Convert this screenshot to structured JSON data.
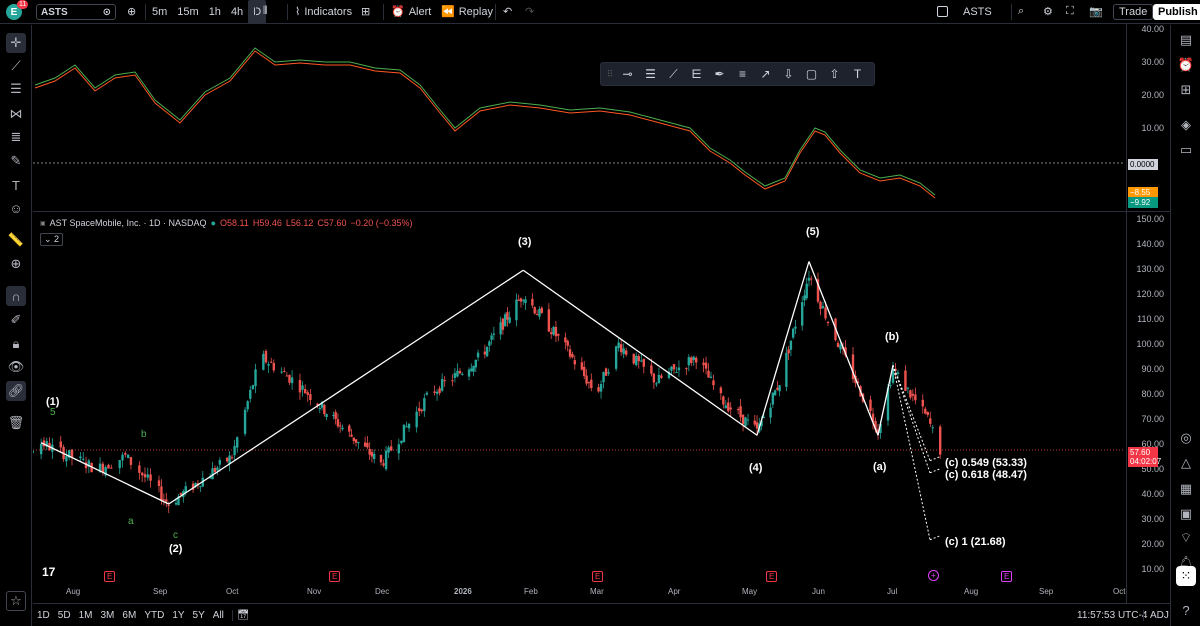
{
  "topbar": {
    "avatar_letter": "E",
    "avatar_badge": "11",
    "symbol": "ASTS",
    "timeframes": [
      "5m",
      "15m",
      "1h",
      "4h",
      "D"
    ],
    "indicators_label": "Indicators",
    "alert_label": "Alert",
    "replay_label": "Replay",
    "right_symbol": "ASTS",
    "trade_label": "Trade",
    "publish_label": "Publish"
  },
  "legend": {
    "title": "AST SpaceMobile, Inc. · 1D · NASDAQ",
    "o": "O58.11",
    "h": "H59.46",
    "l": "L56.12",
    "c": "C57.60",
    "chg": "−0.20 (−0.35%)",
    "collapse": "2"
  },
  "axes": {
    "osc_ticks": [
      "40.00",
      "30.00",
      "20.00",
      "10.00"
    ],
    "osc_zero": "0.0000",
    "osc_tag1": "−8.55",
    "osc_tag2": "−9.92",
    "price_ticks": [
      "150.00",
      "140.00",
      "130.00",
      "120.00",
      "110.00",
      "100.00",
      "90.00",
      "80.00",
      "70.00",
      "60.00",
      "50.00",
      "40.00",
      "30.00",
      "20.00",
      "10.00"
    ],
    "last_price": "57.60",
    "countdown": "04:02:07",
    "months": [
      "Aug",
      "Sep",
      "Oct",
      "Nov",
      "Dec",
      "2026",
      "Feb",
      "Mar",
      "Apr",
      "May",
      "Jun",
      "Jul",
      "Aug",
      "Sep",
      "Oct"
    ]
  },
  "waves": {
    "w1": "(1)",
    "w2": "(2)",
    "w3": "(3)",
    "w4": "(4)",
    "w5": "(5)",
    "wa": "(a)",
    "wb": "(b)",
    "sub5": "5",
    "subb": "b",
    "suba": "a",
    "subc": "c"
  },
  "fibs": {
    "f1": "(c) 0.549 (53.33)",
    "f2": "(c) 0.618 (48.47)",
    "f3": "(c) 1 (21.68)"
  },
  "bottombar": {
    "ranges": [
      "1D",
      "5D",
      "1M",
      "3M",
      "6M",
      "YTD",
      "1Y",
      "5Y",
      "All"
    ],
    "time": "11:57:53 UTC-4",
    "adj": "ADJ"
  },
  "colors": {
    "up": "#26a69a",
    "down": "#ef5350",
    "osc_green": "#4caf50",
    "osc_red": "#ff5722",
    "tag_orange": "#ff9800",
    "tag_green": "#089981"
  },
  "chart_data": {
    "type": "candlestick",
    "price_range": [
      10,
      150
    ],
    "wave_path": [
      {
        "label": "(1)",
        "date": "2025-07-21",
        "price": 60.5
      },
      {
        "label": "(2)",
        "date": "2025-09-05",
        "price": 36
      },
      {
        "label": "(3)",
        "date": "2026-01-29",
        "price": 129.5
      },
      {
        "label": "(4)",
        "date": "2026-05-05",
        "price": 63.5
      },
      {
        "label": "(5)",
        "date": "2026-05-28",
        "price": 133
      },
      {
        "label": "(a)",
        "date": "2026-06-25",
        "price": 63.5
      },
      {
        "label": "(b)",
        "date": "2026-07-01",
        "price": 91.5
      }
    ],
    "fib_targets": [
      53.33,
      48.47,
      21.68
    ],
    "last_close": 57.6
  }
}
